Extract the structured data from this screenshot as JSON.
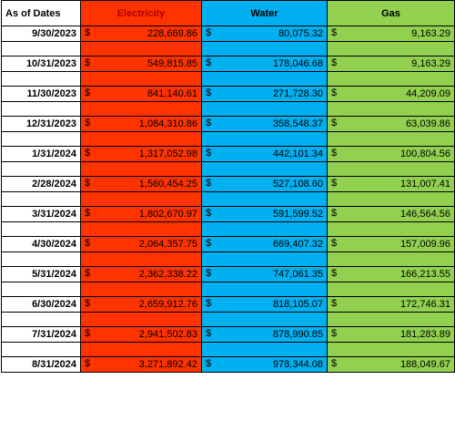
{
  "headers": {
    "date": "As of Dates",
    "electricity": "Electricity",
    "water": "Water",
    "gas": "Gas"
  },
  "currency_symbol": "$",
  "colors": {
    "electricity": "#ff3300",
    "water": "#00b0f0",
    "gas": "#92d050"
  },
  "rows": [
    {
      "date": "9/30/2023",
      "electricity": "228,669.86",
      "water": "80,075.32",
      "gas": "9,163.29"
    },
    {
      "date": "10/31/2023",
      "electricity": "549,815.85",
      "water": "178,046.68",
      "gas": "9,163.29"
    },
    {
      "date": "11/30/2023",
      "electricity": "841,140.61",
      "water": "271,728.30",
      "gas": "44,209.09"
    },
    {
      "date": "12/31/2023",
      "electricity": "1,084,310.86",
      "water": "358,548.37",
      "gas": "63,039.86"
    },
    {
      "date": "1/31/2024",
      "electricity": "1,317,052.98",
      "water": "442,101.34",
      "gas": "100,804.56"
    },
    {
      "date": "2/28/2024",
      "electricity": "1,560,454.25",
      "water": "527,108.60",
      "gas": "131,007.41"
    },
    {
      "date": "3/31/2024",
      "electricity": "1,802,670.97",
      "water": "591,599.52",
      "gas": "146,564.56"
    },
    {
      "date": "4/30/2024",
      "electricity": "2,064,357.75",
      "water": "669,407.32",
      "gas": "157,009.96"
    },
    {
      "date": "5/31/2024",
      "electricity": "2,362,338.22",
      "water": "747,061.35",
      "gas": "166,213.55"
    },
    {
      "date": "6/30/2024",
      "electricity": "2,659,912.76",
      "water": "818,105.07",
      "gas": "172,746.31"
    },
    {
      "date": "7/31/2024",
      "electricity": "2,941,502.83",
      "water": "878,990.85",
      "gas": "181,283.89"
    },
    {
      "date": "8/31/2024",
      "electricity": "3,271,892.42",
      "water": "978,344.08",
      "gas": "188,049.67"
    }
  ]
}
